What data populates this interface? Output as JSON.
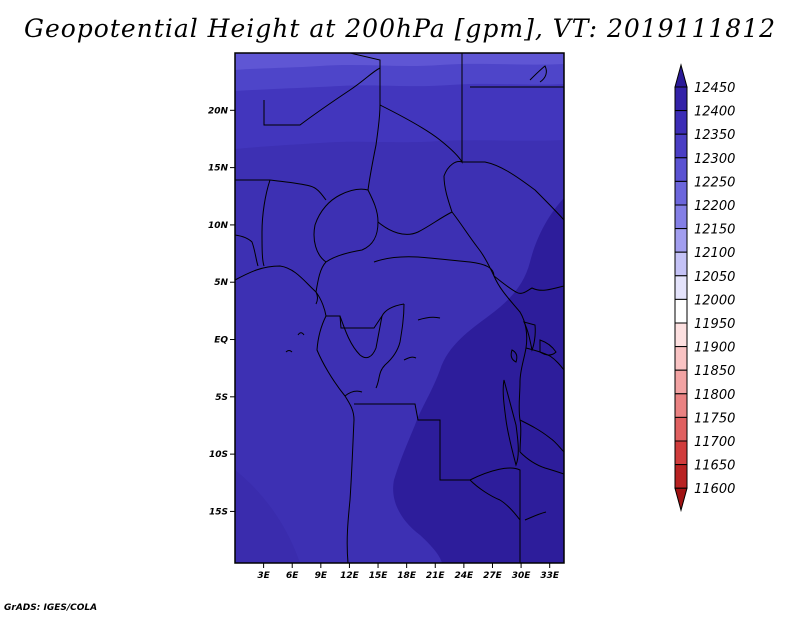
{
  "title": "Geopotential Height at 200hPa [gpm], VT: 2019111812",
  "credit": "GrADS: IGES/COLA",
  "map": {
    "lat_range": [
      -19.5,
      25
    ],
    "lon_range": [
      0,
      34.5
    ],
    "lat_ticks": [
      "20N",
      "15N",
      "10N",
      "5N",
      "EQ",
      "5S",
      "10S",
      "15S"
    ],
    "lat_tick_values": [
      20,
      15,
      10,
      5,
      0,
      -5,
      -10,
      -15
    ],
    "lon_ticks": [
      "3E",
      "6E",
      "9E",
      "12E",
      "15E",
      "18E",
      "21E",
      "24E",
      "27E",
      "30E",
      "33E"
    ],
    "lon_tick_values": [
      3,
      6,
      9,
      12,
      15,
      18,
      21,
      24,
      27,
      30,
      33
    ]
  },
  "colorbar": {
    "levels": [
      "12450",
      "12400",
      "12350",
      "12300",
      "12250",
      "12200",
      "12150",
      "12100",
      "12050",
      "12000",
      "11950",
      "11900",
      "11850",
      "11800",
      "11750",
      "11700",
      "11650",
      "11600"
    ],
    "colors": [
      "#2b1a98",
      "#3322a8",
      "#3c2db6",
      "#4a3ec4",
      "#5a52d2",
      "#6c66dc",
      "#847fe6",
      "#a29eef",
      "#c4c2f6",
      "#e4e3fb",
      "#ffffff",
      "#fde0e0",
      "#f9c3c3",
      "#f2a3a3",
      "#ea8282",
      "#e06060",
      "#d03c3c",
      "#b82222",
      "#a01212"
    ]
  },
  "chart_data": {
    "type": "heatmap",
    "title": "Geopotential Height at 200hPa [gpm], VT: 2019111812",
    "variable": "Geopotential Height at 200hPa",
    "units": "gpm",
    "valid_time": "2019111812",
    "lat_range": [
      -19.5,
      25
    ],
    "lon_range": [
      0,
      34.5
    ],
    "bands": [
      {
        "lat_min": 23.5,
        "lat_max": 25,
        "range": [
          12200,
          12250
        ]
      },
      {
        "lat_min": 21.5,
        "lat_max": 23.5,
        "range": [
          12250,
          12300
        ]
      },
      {
        "lat_min": 17,
        "lat_max": 21.5,
        "range": [
          12300,
          12350
        ]
      },
      {
        "lat_min": -19.5,
        "lat_max": 17,
        "range": [
          12350,
          12400
        ]
      },
      {
        "region": "south-east interior",
        "range": [
          12400,
          12450
        ]
      }
    ]
  }
}
